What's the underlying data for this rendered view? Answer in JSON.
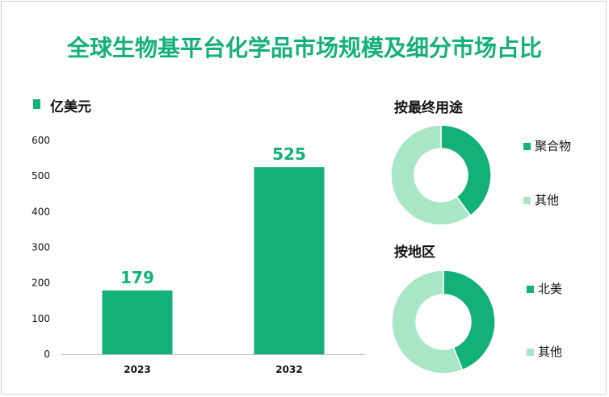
{
  "title": "全球生物基平台化学品市场规模及细分市场占比",
  "colors": {
    "primary": "#13b078",
    "light": "#a8e6c6",
    "title": "#13b078"
  },
  "chart_data": [
    {
      "type": "bar",
      "legend": "亿美元",
      "categories": [
        "2023",
        "2032"
      ],
      "values": [
        179,
        525
      ],
      "data_labels": [
        "179",
        "525"
      ],
      "ylim": [
        0,
        600
      ],
      "yticks": [
        "0",
        "100",
        "200",
        "300",
        "400",
        "500",
        "600"
      ],
      "grid": false
    },
    {
      "type": "pie",
      "style": "donut",
      "title": "按最终用途",
      "labels": [
        "聚合物",
        "其他"
      ],
      "values": [
        40,
        60
      ]
    },
    {
      "type": "pie",
      "style": "donut",
      "title": "按地区",
      "labels": [
        "北美",
        "其他"
      ],
      "values": [
        44,
        56
      ]
    }
  ]
}
